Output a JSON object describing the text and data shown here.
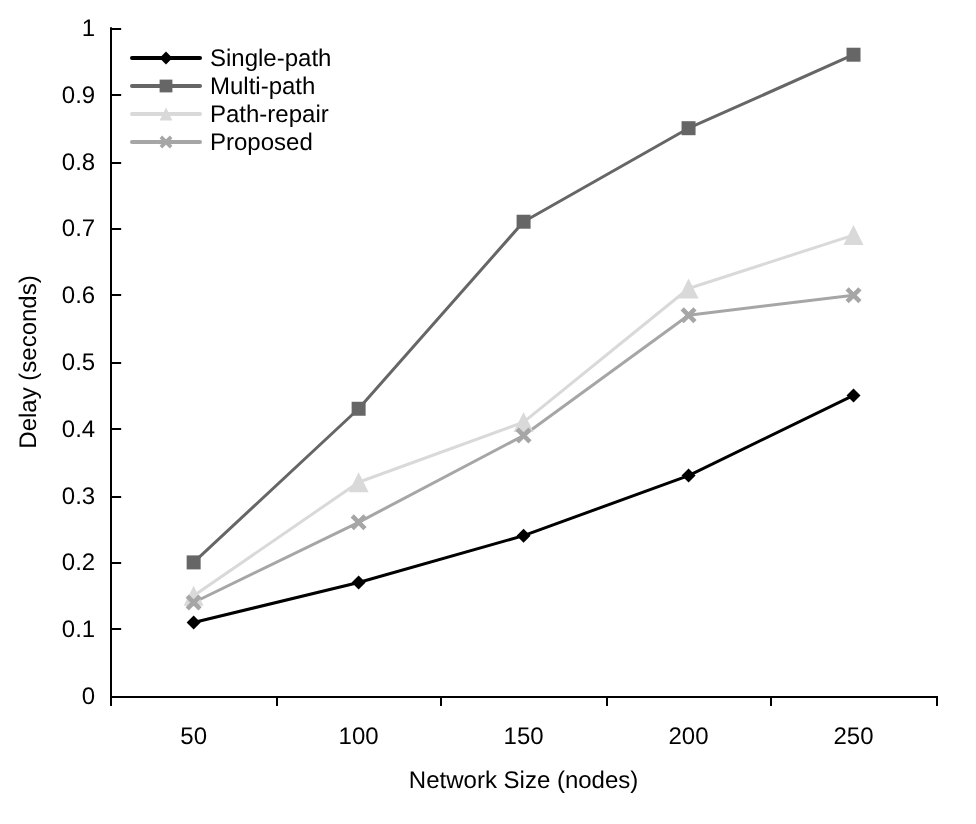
{
  "chart_data": {
    "type": "line",
    "xlabel": "Network Size (nodes)",
    "ylabel": "Delay (seconds)",
    "categories": [
      "50",
      "100",
      "150",
      "200",
      "250"
    ],
    "ylim": [
      0,
      1
    ],
    "yticks": [
      0,
      0.1,
      0.2,
      0.3,
      0.4,
      0.5,
      0.6,
      0.7,
      0.8,
      0.9,
      1
    ],
    "grid": false,
    "legend": "top left",
    "line_style": "solid",
    "series": [
      {
        "name": "Single-path",
        "color": "#000000",
        "marker": "diamond",
        "values": [
          0.11,
          0.17,
          0.24,
          0.33,
          0.45
        ]
      },
      {
        "name": "Multi-path",
        "color": "#666666",
        "marker": "square",
        "values": [
          0.2,
          0.43,
          0.71,
          0.85,
          0.96
        ]
      },
      {
        "name": "Path-repair",
        "color": "#d9d9d9",
        "marker": "triangle",
        "values": [
          0.15,
          0.32,
          0.41,
          0.61,
          0.69
        ]
      },
      {
        "name": "Proposed",
        "color": "#a6a6a6",
        "marker": "cross",
        "values": [
          0.14,
          0.26,
          0.39,
          0.57,
          0.6
        ]
      }
    ]
  }
}
